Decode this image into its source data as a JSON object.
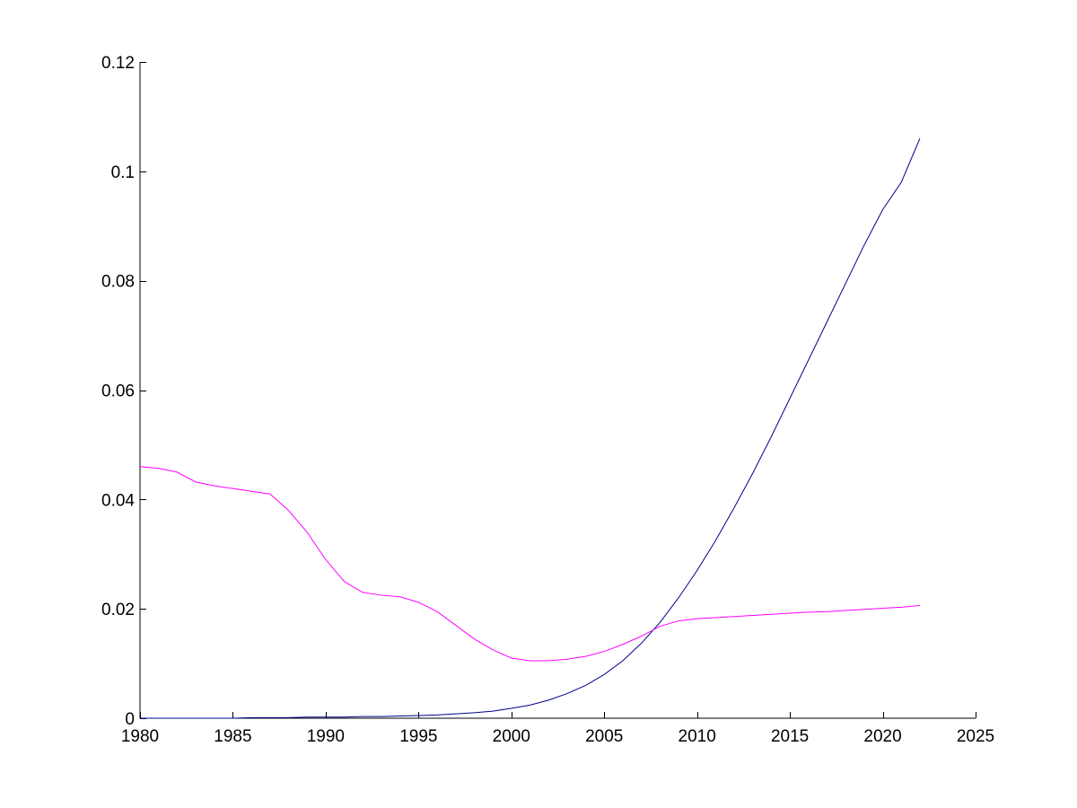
{
  "chart_data": {
    "type": "line",
    "title": "",
    "xlabel": "",
    "ylabel": "",
    "xlim": [
      1980,
      2025
    ],
    "ylim": [
      0,
      0.12
    ],
    "xticks": [
      1980,
      1985,
      1990,
      1995,
      2000,
      2005,
      2010,
      2015,
      2020,
      2025
    ],
    "yticks": [
      0,
      0.02,
      0.04,
      0.06,
      0.08,
      0.1,
      0.12
    ],
    "xtick_labels": [
      "1980",
      "1985",
      "1990",
      "1995",
      "2000",
      "2005",
      "2010",
      "2015",
      "2020",
      "2025"
    ],
    "ytick_labels": [
      "0",
      "0.02",
      "0.04",
      "0.06",
      "0.08",
      "0.1",
      "0.12"
    ],
    "grid": false,
    "legend": "none",
    "series": [
      {
        "color": "#00008b",
        "x": [
          1980,
          1981,
          1982,
          1983,
          1984,
          1985,
          1986,
          1987,
          1988,
          1989,
          1990,
          1991,
          1992,
          1993,
          1994,
          1995,
          1996,
          1997,
          1998,
          1999,
          2000,
          2001,
          2002,
          2003,
          2004,
          2005,
          2006,
          2007,
          2008,
          2009,
          2010,
          2011,
          2012,
          2013,
          2014,
          2015,
          2016,
          2017,
          2018,
          2019,
          2020,
          2021,
          2022
        ],
        "values": [
          0.0,
          0.0,
          0.0,
          0.0,
          0.0,
          0.0,
          0.0001,
          0.0001,
          0.0001,
          0.0002,
          0.0002,
          0.0002,
          0.0003,
          0.0003,
          0.0004,
          0.0005,
          0.0006,
          0.0008,
          0.001,
          0.0013,
          0.0018,
          0.0024,
          0.0033,
          0.0045,
          0.006,
          0.008,
          0.0105,
          0.0137,
          0.0175,
          0.022,
          0.027,
          0.0325,
          0.0385,
          0.0448,
          0.0515,
          0.0585,
          0.0655,
          0.0725,
          0.0795,
          0.0865,
          0.093,
          0.098,
          0.106
        ]
      },
      {
        "color": "#ff00ff",
        "x": [
          1980,
          1981,
          1982,
          1983,
          1984,
          1985,
          1986,
          1987,
          1988,
          1989,
          1990,
          1991,
          1992,
          1993,
          1994,
          1995,
          1996,
          1997,
          1998,
          1999,
          2000,
          2001,
          2002,
          2003,
          2004,
          2005,
          2006,
          2007,
          2008,
          2009,
          2010,
          2011,
          2012,
          2013,
          2014,
          2015,
          2016,
          2017,
          2018,
          2019,
          2020,
          2021,
          2022
        ],
        "values": [
          0.046,
          0.0457,
          0.045,
          0.0432,
          0.0425,
          0.042,
          0.0415,
          0.041,
          0.038,
          0.034,
          0.029,
          0.025,
          0.023,
          0.0225,
          0.0222,
          0.0212,
          0.0195,
          0.017,
          0.0145,
          0.0125,
          0.011,
          0.0105,
          0.0105,
          0.0108,
          0.0113,
          0.0122,
          0.0135,
          0.015,
          0.0168,
          0.0178,
          0.0182,
          0.0184,
          0.0186,
          0.0188,
          0.019,
          0.0192,
          0.0194,
          0.0195,
          0.0197,
          0.0199,
          0.0201,
          0.0203,
          0.0206
        ]
      }
    ]
  }
}
